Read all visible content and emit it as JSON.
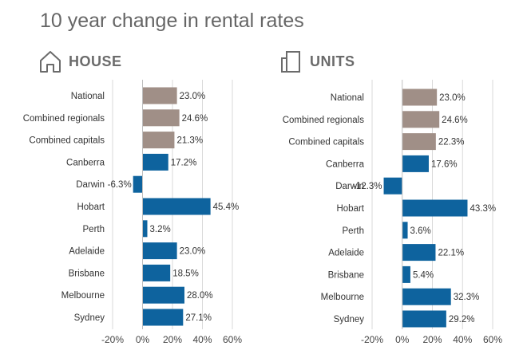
{
  "title": "10 year change in rental rates",
  "colors": {
    "aggregate": "#a08f87",
    "city": "#0e639e",
    "grid": "#d9d9d9",
    "text": "#333333"
  },
  "icons": {
    "house": "house-outline-icon",
    "units": "apartment-outline-icon"
  },
  "chart_data": [
    {
      "type": "bar",
      "orientation": "horizontal",
      "panel": "HOUSE",
      "categories": [
        "National",
        "Combined regionals",
        "Combined capitals",
        "Canberra",
        "Darwin",
        "Hobart",
        "Perth",
        "Adelaide",
        "Brisbane",
        "Melbourne",
        "Sydney"
      ],
      "values": [
        23.0,
        24.6,
        21.3,
        17.2,
        -6.3,
        45.4,
        3.2,
        23.0,
        18.5,
        28.0,
        27.1
      ],
      "value_labels": [
        "23.0%",
        "24.6%",
        "21.3%",
        "17.2%",
        "-6.3%",
        "45.4%",
        "3.2%",
        "23.0%",
        "18.5%",
        "28.0%",
        "27.1%"
      ],
      "aggregate_count": 3,
      "xlim": [
        -20,
        60
      ],
      "ticks": [
        -20,
        0,
        20,
        40,
        60
      ],
      "tick_labels": [
        "-20%",
        "0%",
        "20%",
        "40%",
        "60%"
      ],
      "grid": true
    },
    {
      "type": "bar",
      "orientation": "horizontal",
      "panel": "UNITS",
      "categories": [
        "National",
        "Combined regionals",
        "Combined capitals",
        "Canberra",
        "Darwin",
        "Hobart",
        "Perth",
        "Adelaide",
        "Brisbane",
        "Melbourne",
        "Sydney"
      ],
      "values": [
        23.0,
        24.6,
        22.3,
        17.6,
        -12.3,
        43.3,
        3.6,
        22.1,
        5.4,
        32.3,
        29.2
      ],
      "value_labels": [
        "23.0%",
        "24.6%",
        "22.3%",
        "17.6%",
        "-12.3%",
        "43.3%",
        "3.6%",
        "22.1%",
        "5.4%",
        "32.3%",
        "29.2%"
      ],
      "aggregate_count": 3,
      "xlim": [
        -20,
        60
      ],
      "ticks": [
        -20,
        0,
        20,
        40,
        60
      ],
      "tick_labels": [
        "-20%",
        "0%",
        "20%",
        "40%",
        "60%"
      ],
      "grid": true
    }
  ]
}
